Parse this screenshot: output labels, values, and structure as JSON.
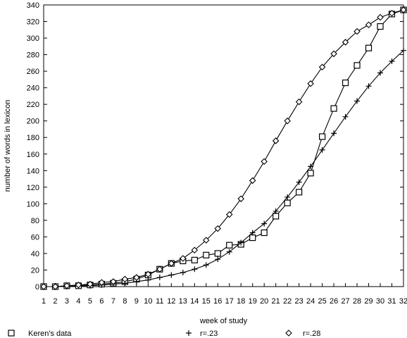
{
  "chart_data": {
    "type": "line",
    "xlabel": "week of study",
    "ylabel": "number of words in lexicon",
    "xlim": [
      1,
      32
    ],
    "ylim": [
      0,
      340
    ],
    "x": [
      1,
      2,
      3,
      4,
      5,
      6,
      7,
      8,
      9,
      10,
      11,
      12,
      13,
      14,
      15,
      16,
      17,
      18,
      19,
      20,
      21,
      22,
      23,
      24,
      25,
      26,
      27,
      28,
      29,
      30,
      31,
      32
    ],
    "x_tick_labels": [
      "1",
      "2",
      "3",
      "4",
      "5",
      "6",
      "7",
      "8",
      "9",
      "10",
      "11",
      "12",
      "13",
      "14",
      "15",
      "16",
      "17",
      "18",
      "19",
      "20",
      "21",
      "22",
      "23",
      "24",
      "25",
      "26",
      "27",
      "28",
      "29",
      "30",
      "31",
      "32"
    ],
    "y_ticks": [
      0,
      20,
      40,
      60,
      80,
      100,
      120,
      140,
      160,
      180,
      200,
      220,
      240,
      260,
      280,
      300,
      320,
      340
    ],
    "y_tick_labels": [
      "0",
      "20",
      "40",
      "60",
      "80",
      "100",
      "120",
      "140",
      "160",
      "180",
      "200",
      "220",
      "240",
      "260",
      "280",
      "300",
      "320",
      "340"
    ],
    "legend_position": "bottom",
    "series": [
      {
        "name": "Keren's data",
        "marker": "square",
        "values": [
          0,
          0,
          1,
          1,
          2,
          3,
          4,
          6,
          9,
          14,
          21,
          28,
          31,
          32,
          38,
          40,
          50,
          51,
          59,
          65,
          85,
          101,
          114,
          137,
          181,
          215,
          246,
          267,
          288,
          314,
          329,
          334
        ]
      },
      {
        "name": "r=.23",
        "marker": "plus",
        "values": [
          0,
          0,
          0,
          1,
          1,
          2,
          3,
          4,
          6,
          8,
          11,
          14,
          17,
          21,
          26,
          33,
          42,
          53,
          65,
          76,
          91,
          108,
          126,
          145,
          165,
          185,
          205,
          224,
          242,
          258,
          272,
          285
        ]
      },
      {
        "name": "r=.28",
        "marker": "diamond",
        "values": [
          0,
          0,
          1,
          2,
          3,
          5,
          6,
          9,
          11,
          15,
          21,
          28,
          34,
          44,
          56,
          70,
          87,
          106,
          128,
          151,
          176,
          200,
          223,
          245,
          265,
          281,
          295,
          308,
          316,
          325,
          330,
          334
        ]
      }
    ]
  }
}
